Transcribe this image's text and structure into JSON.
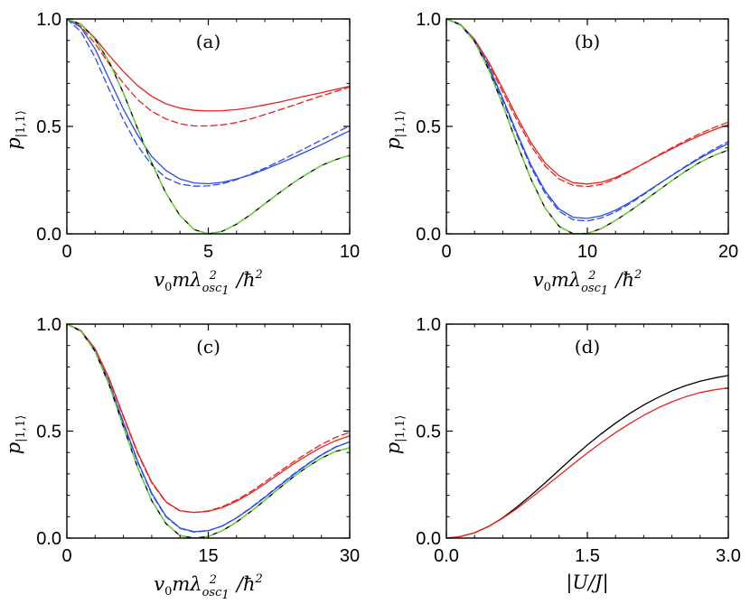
{
  "chart_data": [
    {
      "id": "a",
      "type": "line",
      "panel_label": "(a)",
      "xlabel": "v0 m λ²osc1 / ħ²",
      "ylabel": "p|1,1⟩",
      "xlim": [
        0,
        10
      ],
      "ylim": [
        0,
        1
      ],
      "xticks": [
        "0",
        "5",
        "10"
      ],
      "yticks": [
        "0.0",
        "0.5",
        "1.0"
      ],
      "x": [
        0,
        0.5,
        1,
        1.5,
        2,
        2.5,
        3,
        3.5,
        4,
        4.5,
        5,
        5.5,
        6,
        6.5,
        7,
        7.5,
        8,
        8.5,
        9,
        9.5,
        10
      ],
      "series": [
        {
          "name": "red solid",
          "color": "#e8231e",
          "dash": "solid",
          "values": [
            1.0,
            0.975,
            0.91,
            0.83,
            0.755,
            0.69,
            0.64,
            0.605,
            0.585,
            0.575,
            0.572,
            0.573,
            0.578,
            0.588,
            0.6,
            0.613,
            0.628,
            0.643,
            0.657,
            0.672,
            0.687
          ]
        },
        {
          "name": "red dashed",
          "color": "#e8231e",
          "dash": "dashed",
          "values": [
            1.0,
            0.965,
            0.885,
            0.79,
            0.7,
            0.625,
            0.57,
            0.535,
            0.512,
            0.502,
            0.502,
            0.507,
            0.518,
            0.535,
            0.555,
            0.576,
            0.598,
            0.62,
            0.642,
            0.662,
            0.683
          ]
        },
        {
          "name": "blue solid",
          "color": "#2b4bef",
          "dash": "solid",
          "values": [
            1.0,
            0.96,
            0.86,
            0.72,
            0.58,
            0.46,
            0.36,
            0.295,
            0.255,
            0.237,
            0.233,
            0.24,
            0.255,
            0.275,
            0.3,
            0.327,
            0.355,
            0.385,
            0.415,
            0.448,
            0.48
          ]
        },
        {
          "name": "blue dashed",
          "color": "#2b4bef",
          "dash": "dashed",
          "values": [
            1.0,
            0.94,
            0.82,
            0.67,
            0.53,
            0.41,
            0.32,
            0.26,
            0.232,
            0.222,
            0.223,
            0.233,
            0.252,
            0.278,
            0.306,
            0.337,
            0.37,
            0.403,
            0.437,
            0.47,
            0.502
          ]
        },
        {
          "name": "black solid",
          "color": "#000000",
          "dash": "solid",
          "values": [
            1.0,
            0.975,
            0.905,
            0.8,
            0.655,
            0.49,
            0.33,
            0.19,
            0.085,
            0.02,
            0.0,
            0.012,
            0.045,
            0.09,
            0.14,
            0.19,
            0.237,
            0.28,
            0.318,
            0.345,
            0.365
          ]
        },
        {
          "name": "green dashed",
          "color": "#66e02a",
          "dash": "thick-dashed",
          "values": [
            1.0,
            0.975,
            0.905,
            0.8,
            0.655,
            0.49,
            0.33,
            0.19,
            0.085,
            0.02,
            0.0,
            0.012,
            0.045,
            0.09,
            0.14,
            0.19,
            0.237,
            0.28,
            0.318,
            0.345,
            0.365
          ]
        }
      ]
    },
    {
      "id": "b",
      "type": "line",
      "panel_label": "(b)",
      "xlabel": "v0 m λ²osc1 / ħ²",
      "ylabel": "p|1,1⟩",
      "xlim": [
        0,
        20
      ],
      "ylim": [
        0,
        1
      ],
      "xticks": [
        "0",
        "10",
        "20"
      ],
      "yticks": [
        "0.0",
        "0.5",
        "1.0"
      ],
      "x": [
        0,
        1,
        2,
        3,
        4,
        5,
        6,
        7,
        8,
        9,
        10,
        11,
        12,
        13,
        14,
        15,
        16,
        17,
        18,
        19,
        20
      ],
      "series": [
        {
          "name": "red solid",
          "color": "#e8231e",
          "dash": "solid",
          "values": [
            1.0,
            0.975,
            0.905,
            0.8,
            0.675,
            0.545,
            0.425,
            0.33,
            0.27,
            0.238,
            0.232,
            0.24,
            0.262,
            0.293,
            0.327,
            0.362,
            0.396,
            0.428,
            0.458,
            0.485,
            0.508
          ]
        },
        {
          "name": "red dashed",
          "color": "#e8231e",
          "dash": "dashed",
          "values": [
            1.0,
            0.972,
            0.9,
            0.79,
            0.66,
            0.53,
            0.41,
            0.315,
            0.255,
            0.225,
            0.22,
            0.23,
            0.256,
            0.29,
            0.328,
            0.365,
            0.401,
            0.435,
            0.467,
            0.495,
            0.52
          ]
        },
        {
          "name": "blue solid",
          "color": "#2b4bef",
          "dash": "solid",
          "values": [
            1.0,
            0.975,
            0.9,
            0.78,
            0.63,
            0.47,
            0.32,
            0.2,
            0.115,
            0.077,
            0.072,
            0.084,
            0.11,
            0.146,
            0.187,
            0.23,
            0.272,
            0.313,
            0.352,
            0.388,
            0.42
          ]
        },
        {
          "name": "blue dashed",
          "color": "#2b4bef",
          "dash": "dashed",
          "values": [
            1.0,
            0.972,
            0.895,
            0.77,
            0.62,
            0.46,
            0.31,
            0.19,
            0.105,
            0.065,
            0.06,
            0.074,
            0.102,
            0.14,
            0.183,
            0.228,
            0.273,
            0.316,
            0.357,
            0.395,
            0.43
          ]
        },
        {
          "name": "black solid",
          "color": "#000000",
          "dash": "solid",
          "values": [
            1.0,
            0.975,
            0.895,
            0.765,
            0.6,
            0.42,
            0.255,
            0.12,
            0.035,
            0.0,
            0.002,
            0.025,
            0.062,
            0.105,
            0.152,
            0.2,
            0.248,
            0.293,
            0.333,
            0.365,
            0.39
          ]
        },
        {
          "name": "green dashed",
          "color": "#66e02a",
          "dash": "thick-dashed",
          "values": [
            1.0,
            0.975,
            0.895,
            0.765,
            0.6,
            0.42,
            0.255,
            0.12,
            0.035,
            0.0,
            0.002,
            0.025,
            0.062,
            0.105,
            0.152,
            0.2,
            0.248,
            0.293,
            0.333,
            0.365,
            0.39
          ]
        }
      ]
    },
    {
      "id": "c",
      "type": "line",
      "panel_label": "(c)",
      "xlabel": "v0 m λ²osc1 / ħ²",
      "ylabel": "p|1,1⟩",
      "xlim": [
        0,
        30
      ],
      "ylim": [
        0,
        1
      ],
      "xticks": [
        "0",
        "15",
        "30"
      ],
      "yticks": [
        "0.0",
        "0.5",
        "1.0"
      ],
      "x": [
        0,
        1.5,
        3,
        4.5,
        6,
        7.5,
        9,
        10.5,
        12,
        13.5,
        15,
        16.5,
        18,
        19.5,
        21,
        22.5,
        24,
        25.5,
        27,
        28.5,
        30
      ],
      "series": [
        {
          "name": "red solid",
          "color": "#e8231e",
          "dash": "solid",
          "values": [
            1.0,
            0.97,
            0.885,
            0.745,
            0.57,
            0.4,
            0.262,
            0.17,
            0.128,
            0.12,
            0.125,
            0.143,
            0.172,
            0.21,
            0.253,
            0.3,
            0.345,
            0.387,
            0.425,
            0.455,
            0.478
          ]
        },
        {
          "name": "red dashed",
          "color": "#e8231e",
          "dash": "dashed",
          "values": [
            1.0,
            0.968,
            0.88,
            0.74,
            0.565,
            0.395,
            0.258,
            0.168,
            0.127,
            0.12,
            0.127,
            0.147,
            0.178,
            0.217,
            0.262,
            0.309,
            0.355,
            0.398,
            0.438,
            0.47,
            0.495
          ]
        },
        {
          "name": "blue solid",
          "color": "#2b4bef",
          "dash": "solid",
          "values": [
            1.0,
            0.968,
            0.875,
            0.725,
            0.54,
            0.36,
            0.21,
            0.103,
            0.047,
            0.03,
            0.035,
            0.057,
            0.094,
            0.14,
            0.19,
            0.243,
            0.295,
            0.344,
            0.388,
            0.425,
            0.45
          ]
        },
        {
          "name": "blue dashed",
          "color": "#2b4bef",
          "dash": "dashed",
          "values": [
            1.0,
            0.966,
            0.872,
            0.72,
            0.535,
            0.355,
            0.205,
            0.1,
            0.045,
            0.028,
            0.034,
            0.057,
            0.095,
            0.142,
            0.193,
            0.246,
            0.298,
            0.346,
            0.39,
            0.426,
            0.45
          ]
        },
        {
          "name": "black solid",
          "color": "#000000",
          "dash": "solid",
          "values": [
            1.0,
            0.968,
            0.872,
            0.715,
            0.52,
            0.33,
            0.175,
            0.068,
            0.012,
            0.0,
            0.008,
            0.035,
            0.075,
            0.124,
            0.177,
            0.232,
            0.285,
            0.333,
            0.374,
            0.405,
            0.422
          ]
        },
        {
          "name": "green dashed",
          "color": "#66e02a",
          "dash": "thick-dashed",
          "values": [
            1.0,
            0.968,
            0.872,
            0.715,
            0.52,
            0.33,
            0.175,
            0.068,
            0.012,
            0.0,
            0.008,
            0.035,
            0.075,
            0.124,
            0.177,
            0.232,
            0.285,
            0.333,
            0.374,
            0.405,
            0.422
          ]
        }
      ]
    },
    {
      "id": "d",
      "type": "line",
      "panel_label": "(d)",
      "xlabel": "|U/J|",
      "ylabel": "p|1,1⟩",
      "xlim": [
        0,
        3
      ],
      "ylim": [
        0,
        1
      ],
      "xticks": [
        "0.0",
        "1.5",
        "3.0"
      ],
      "yticks": [
        "0.0",
        "0.5",
        "1.0"
      ],
      "x": [
        0,
        0.15,
        0.3,
        0.45,
        0.6,
        0.75,
        0.9,
        1.05,
        1.2,
        1.35,
        1.5,
        1.65,
        1.8,
        1.95,
        2.1,
        2.25,
        2.4,
        2.55,
        2.7,
        2.85,
        3.0
      ],
      "series": [
        {
          "name": "black solid",
          "color": "#000000",
          "dash": "solid",
          "values": [
            0.0,
            0.007,
            0.025,
            0.055,
            0.095,
            0.145,
            0.2,
            0.258,
            0.318,
            0.378,
            0.435,
            0.488,
            0.537,
            0.582,
            0.622,
            0.657,
            0.688,
            0.713,
            0.733,
            0.748,
            0.76
          ]
        },
        {
          "name": "red solid",
          "color": "#e8231e",
          "dash": "solid",
          "values": [
            0.0,
            0.007,
            0.025,
            0.055,
            0.093,
            0.138,
            0.188,
            0.24,
            0.293,
            0.346,
            0.398,
            0.447,
            0.493,
            0.535,
            0.574,
            0.608,
            0.637,
            0.661,
            0.68,
            0.693,
            0.702
          ]
        }
      ]
    }
  ]
}
